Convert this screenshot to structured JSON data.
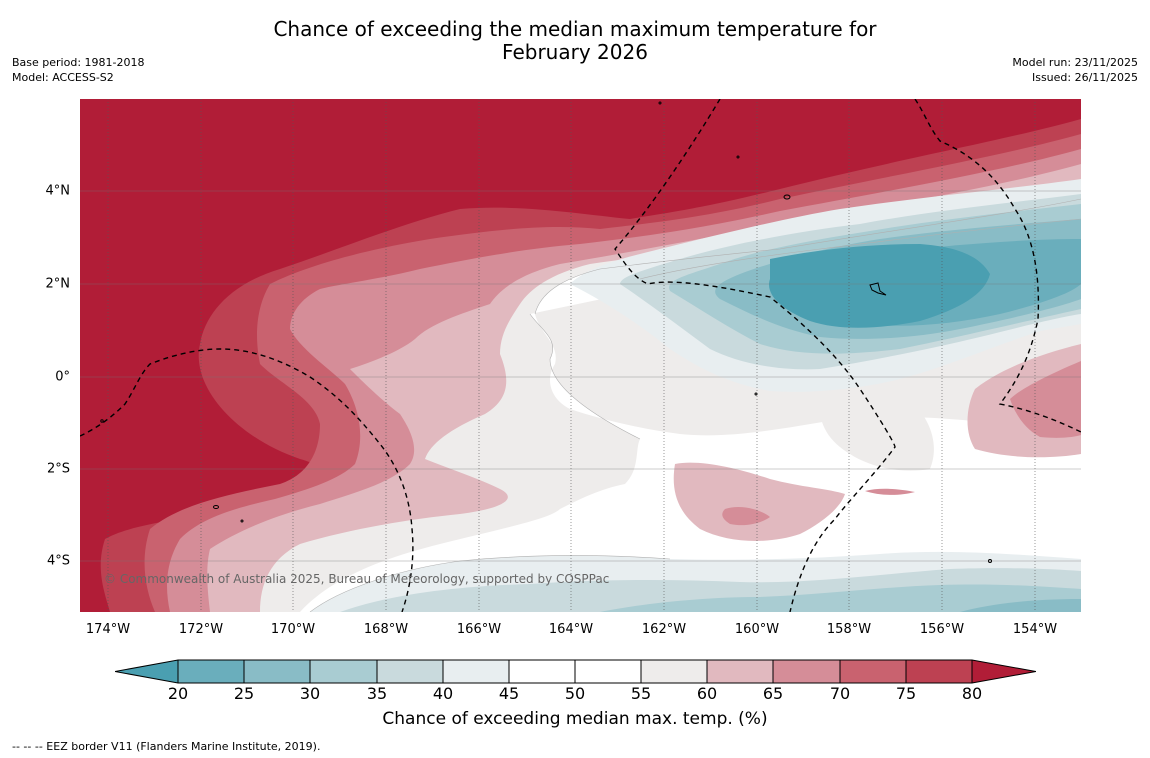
{
  "title": {
    "line1": "Chance of exceeding the median maximum temperature for",
    "line2": "February 2026"
  },
  "meta_left": {
    "base_period": "Base period: 1981-2018",
    "model": "Model: ACCESS-S2"
  },
  "meta_right": {
    "model_run": "Model run: 23/11/2025",
    "issued": "Issued: 26/11/2025"
  },
  "map": {
    "copyright": "© Commonwealth of Australia 2025, Bureau of Meteorology, supported by COSPPac",
    "lat_labels": [
      "4°N",
      "2°N",
      "0°",
      "2°S",
      "4°S"
    ],
    "lon_labels": [
      "174°W",
      "172°W",
      "170°W",
      "168°W",
      "166°W",
      "164°W",
      "162°W",
      "160°W",
      "158°W",
      "156°W",
      "154°W"
    ]
  },
  "colorbar": {
    "label": "Chance of exceeding median max. temp. (%)",
    "ticks": [
      "20",
      "25",
      "30",
      "35",
      "40",
      "45",
      "50",
      "55",
      "60",
      "65",
      "70",
      "75",
      "80"
    ],
    "colors": {
      "below_20": "#4a9fb1",
      "b20_25": "#6aaebc",
      "b25_30": "#89bcc6",
      "b30_35": "#a9ccd2",
      "b35_40": "#c9dadd",
      "b40_45": "#e8eef0",
      "b45_55": "#ffffff",
      "b55_60": "#eeeceb",
      "b60_65": "#e1b9bf",
      "b65_70": "#d58d98",
      "b70_75": "#c9626f",
      "b75_80": "#bd4152",
      "above_80": "#b11d37"
    }
  },
  "footer": "--  --  -- EEZ border V11 (Flanders Marine Institute, 2019)."
}
